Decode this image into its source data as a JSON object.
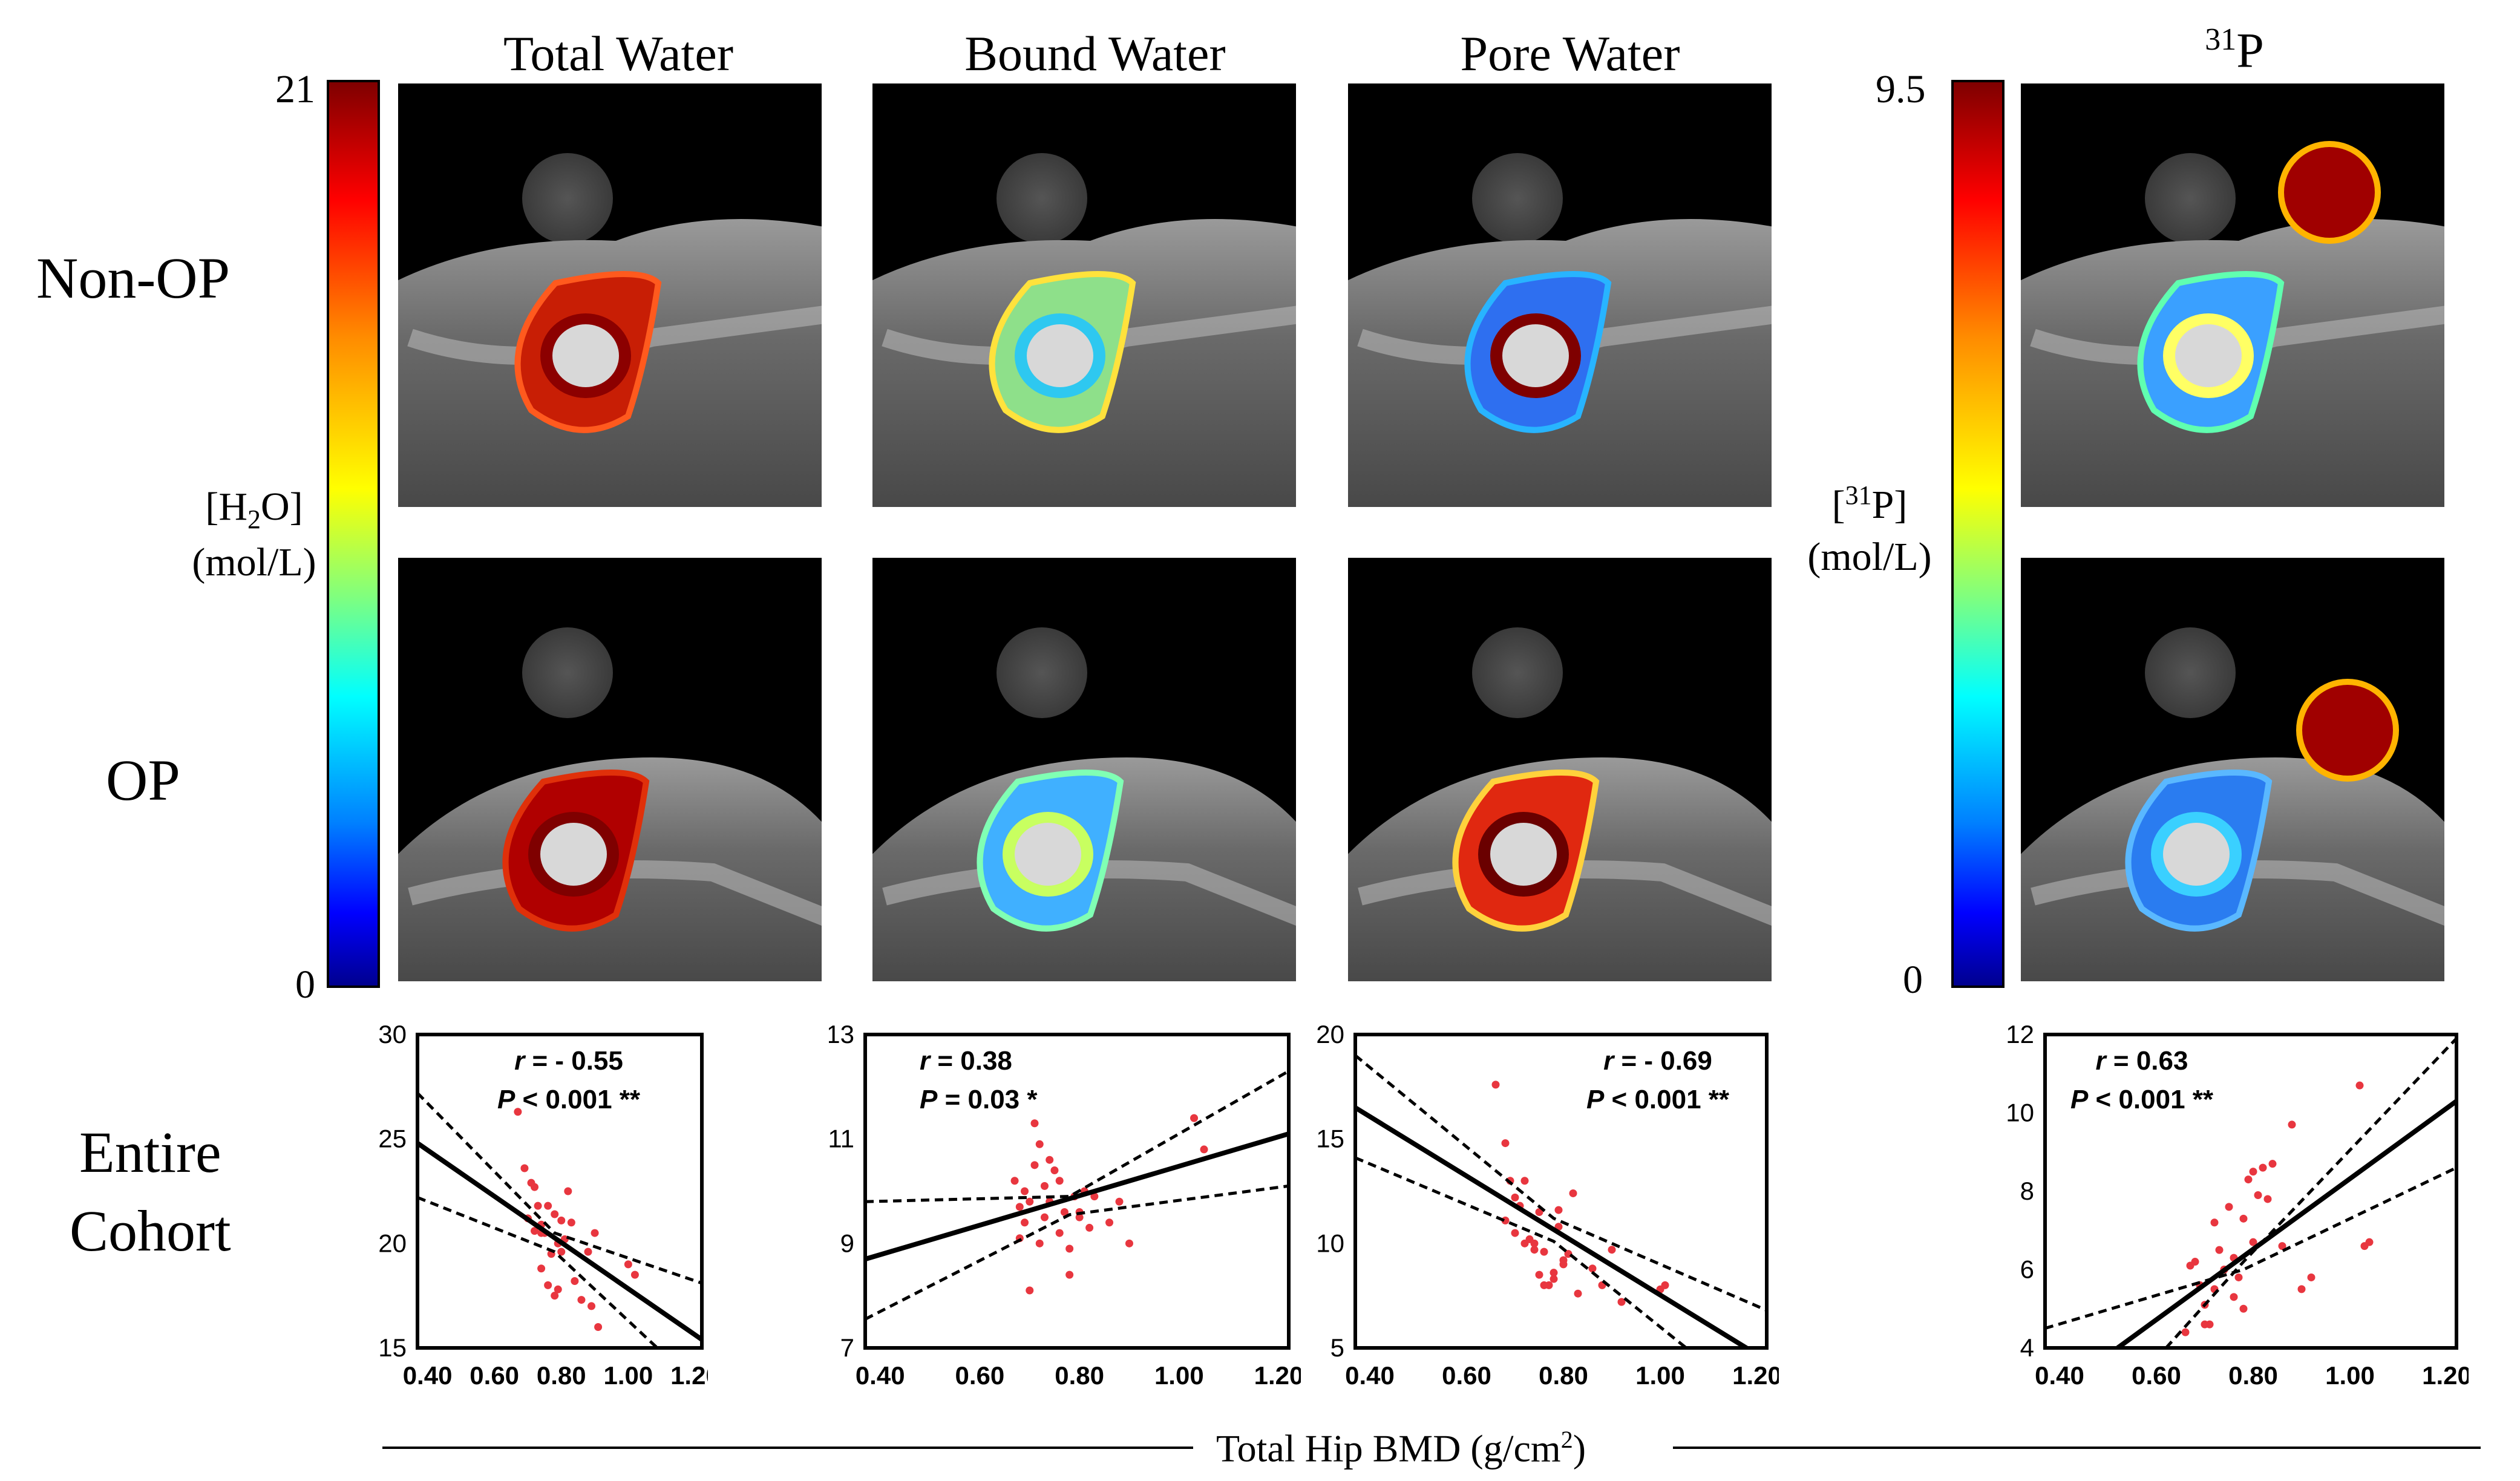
{
  "columns": [
    {
      "title": "Total Water"
    },
    {
      "title": "Bound Water"
    },
    {
      "title": "Pore Water"
    },
    {
      "title_sup": "31",
      "title_main": "P"
    }
  ],
  "rows": {
    "non_op": "Non-OP",
    "op": "OP",
    "cohort_line1": "Entire",
    "cohort_line2": "Cohort"
  },
  "colorbars": {
    "water": {
      "max": "21",
      "min": "0",
      "label_a": "[H",
      "label_sub": "2",
      "label_b": "O]",
      "units": "(mol/L)"
    },
    "phosphorus": {
      "max": "9.5",
      "min": "0",
      "label_a": "[",
      "label_sup": "31",
      "label_b": "P]",
      "units": "(mol/L)"
    }
  },
  "x_axis": {
    "label_main": "Total Hip BMD (g/cm",
    "label_sup": "2",
    "label_end": ")"
  },
  "colors": {
    "points": "#e8363f",
    "line": "#000000"
  },
  "chart_data": [
    {
      "type": "scatter",
      "name": "Total Water",
      "r_text": "r",
      "r_value": " = - 0.55",
      "p_text": "P",
      "p_value": " < 0.001 **",
      "xlim": [
        0.37,
        1.22
      ],
      "ylim": [
        15,
        30
      ],
      "xticks": [
        "0.40",
        "0.60",
        "0.80",
        "1.00",
        "1.20"
      ],
      "yticks": [
        "15",
        "20",
        "25",
        "30"
      ],
      "fit": [
        [
          0.37,
          24.8
        ],
        [
          1.22,
          15.4
        ]
      ],
      "ci_upper": [
        [
          0.37,
          27.2
        ],
        [
          0.78,
          20.5
        ],
        [
          1.22,
          18.1
        ]
      ],
      "ci_lower": [
        [
          0.37,
          22.2
        ],
        [
          0.78,
          19.6
        ],
        [
          1.22,
          13.0
        ]
      ],
      "x": [
        0.67,
        0.69,
        0.71,
        0.72,
        0.73,
        0.74,
        0.75,
        0.76,
        0.77,
        0.78,
        0.79,
        0.8,
        0.81,
        0.82,
        0.84,
        0.7,
        0.72,
        0.74,
        0.76,
        0.78,
        0.8,
        0.83,
        0.86,
        0.88,
        0.9,
        0.74,
        0.79,
        1.0,
        1.02,
        0.91,
        0.89
      ],
      "y": [
        26.3,
        23.6,
        22.9,
        22.7,
        21.8,
        20.9,
        20.5,
        21.8,
        19.5,
        21.4,
        20.0,
        21.1,
        20.2,
        22.5,
        18.2,
        21.2,
        20.6,
        18.8,
        18.0,
        17.5,
        19.6,
        21.0,
        17.3,
        19.6,
        20.5,
        20.5,
        17.8,
        19.0,
        18.5,
        16.0,
        17.0
      ]
    },
    {
      "type": "scatter",
      "name": "Bound Water",
      "r_text": "r",
      "r_value": " = 0.38",
      "p_text": "P",
      "p_value": " = 0.03 *",
      "xlim": [
        0.37,
        1.22
      ],
      "ylim": [
        7,
        13
      ],
      "xticks": [
        "0.40",
        "0.60",
        "0.80",
        "1.00",
        "1.20"
      ],
      "yticks": [
        "7",
        "9",
        "11",
        "13"
      ],
      "fit": [
        [
          0.37,
          8.7
        ],
        [
          1.22,
          11.1
        ]
      ],
      "ci_upper": [
        [
          0.37,
          9.8
        ],
        [
          0.78,
          9.9
        ],
        [
          1.22,
          12.3
        ]
      ],
      "ci_lower": [
        [
          0.37,
          7.55
        ],
        [
          0.78,
          9.55
        ],
        [
          1.22,
          10.1
        ]
      ],
      "x": [
        0.67,
        0.68,
        0.69,
        0.7,
        0.71,
        0.72,
        0.73,
        0.74,
        0.75,
        0.76,
        0.77,
        0.78,
        0.79,
        0.8,
        0.81,
        0.82,
        0.68,
        0.7,
        0.72,
        0.74,
        0.76,
        0.78,
        0.8,
        0.83,
        0.86,
        0.88,
        0.9,
        0.69,
        0.73,
        1.03,
        1.05,
        0.71
      ],
      "y": [
        10.2,
        9.1,
        10.0,
        9.8,
        11.3,
        10.9,
        9.5,
        10.6,
        10.4,
        9.2,
        9.6,
        8.4,
        9.9,
        9.5,
        10.0,
        9.3,
        9.7,
        8.1,
        9.0,
        9.8,
        10.2,
        8.9,
        9.6,
        9.9,
        9.4,
        9.8,
        9.0,
        9.4,
        10.1,
        11.4,
        10.8,
        10.5
      ]
    },
    {
      "type": "scatter",
      "name": "Pore Water",
      "r_text": "r",
      "r_value": " = - 0.69",
      "p_text": "P",
      "p_value": " < 0.001 **",
      "xlim": [
        0.37,
        1.22
      ],
      "ylim": [
        5,
        20
      ],
      "xticks": [
        "0.40",
        "0.60",
        "0.80",
        "1.00",
        "1.20"
      ],
      "yticks": [
        "5",
        "10",
        "15",
        "20"
      ],
      "fit": [
        [
          0.37,
          16.5
        ],
        [
          1.22,
          4.4
        ]
      ],
      "ci_upper": [
        [
          0.37,
          19.0
        ],
        [
          0.78,
          11.2
        ],
        [
          1.22,
          6.8
        ]
      ],
      "ci_lower": [
        [
          0.37,
          14.1
        ],
        [
          0.78,
          10.1
        ],
        [
          1.22,
          1.9
        ]
      ],
      "x": [
        0.66,
        0.68,
        0.69,
        0.7,
        0.71,
        0.72,
        0.73,
        0.74,
        0.75,
        0.76,
        0.77,
        0.78,
        0.79,
        0.8,
        0.81,
        0.82,
        0.7,
        0.72,
        0.74,
        0.76,
        0.78,
        0.8,
        0.83,
        0.86,
        0.88,
        0.9,
        0.92,
        0.68,
        0.75,
        1.0,
        1.01,
        0.79
      ],
      "y": [
        17.6,
        14.8,
        13.0,
        12.2,
        11.8,
        13.0,
        10.2,
        10.0,
        11.5,
        9.6,
        8.0,
        8.6,
        10.8,
        9.2,
        9.5,
        12.4,
        10.5,
        10.0,
        9.7,
        8.0,
        8.3,
        9.0,
        7.6,
        8.8,
        8.0,
        9.7,
        7.2,
        11.1,
        8.5,
        7.8,
        8.0,
        11.6
      ]
    },
    {
      "type": "scatter",
      "name": "31P",
      "r_text": "r",
      "r_value": " = 0.63",
      "p_text": "P",
      "p_value": " < 0.001 **",
      "xlim": [
        0.37,
        1.22
      ],
      "ylim": [
        4,
        12
      ],
      "xticks": [
        "0.40",
        "0.60",
        "0.80",
        "1.00",
        "1.20"
      ],
      "yticks": [
        "4",
        "6",
        "8",
        "10",
        "12"
      ],
      "fit": [
        [
          0.52,
          4.0
        ],
        [
          1.22,
          10.3
        ]
      ],
      "ci_upper": [
        [
          0.62,
          4.0
        ],
        [
          0.78,
          6.2
        ],
        [
          1.22,
          11.9
        ]
      ],
      "ci_lower": [
        [
          0.37,
          4.5
        ],
        [
          0.78,
          6.0
        ],
        [
          1.22,
          8.6
        ]
      ],
      "x": [
        0.66,
        0.68,
        0.69,
        0.7,
        0.71,
        0.72,
        0.73,
        0.74,
        0.75,
        0.76,
        0.77,
        0.78,
        0.79,
        0.8,
        0.81,
        0.82,
        0.83,
        0.84,
        0.86,
        0.88,
        0.9,
        0.92,
        0.7,
        0.72,
        0.74,
        0.76,
        0.78,
        0.8,
        1.02,
        1.04,
        1.03,
        0.67
      ],
      "y": [
        4.4,
        6.2,
        5.6,
        5.1,
        4.6,
        7.2,
        6.5,
        6.0,
        7.6,
        6.3,
        5.8,
        7.3,
        8.3,
        8.5,
        7.9,
        8.6,
        7.8,
        8.7,
        6.6,
        9.7,
        5.5,
        5.8,
        4.6,
        5.5,
        6.0,
        5.3,
        5.0,
        6.7,
        10.7,
        6.7,
        6.6,
        6.1
      ]
    }
  ]
}
